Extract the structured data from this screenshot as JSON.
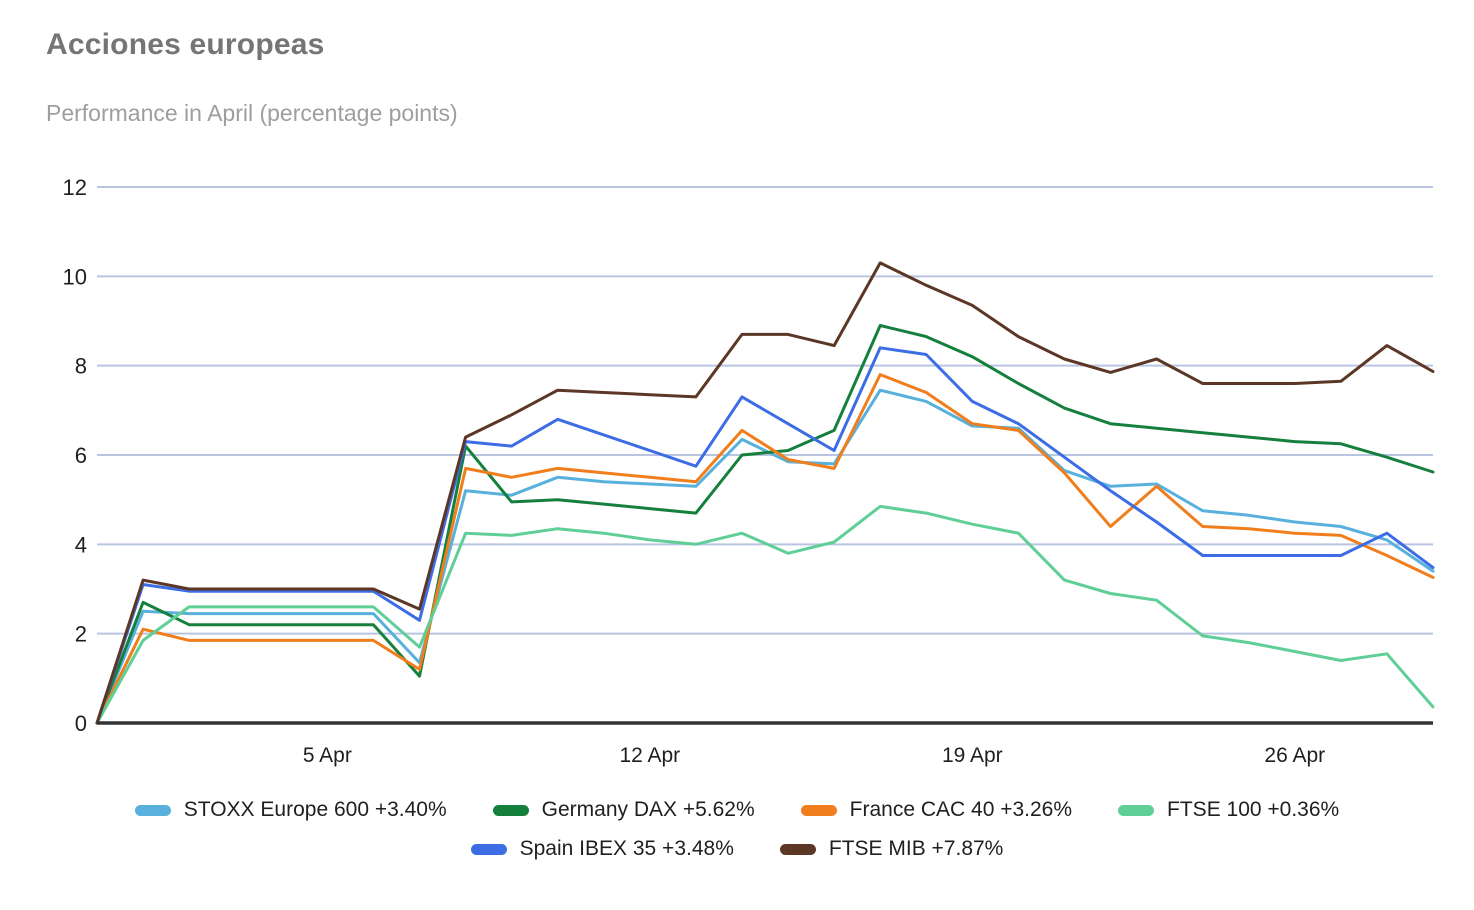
{
  "header": {
    "title": "Acciones europeas",
    "subtitle": "Performance in April (percentage points)"
  },
  "style": {
    "gridline_color": "#b9c5e0",
    "axis_color": "#333333",
    "tick_label_color": "#1f1f1f",
    "title_color": "#757575",
    "subtitle_color": "#9e9e9e",
    "background": "#ffffff"
  },
  "chart_data": {
    "type": "line",
    "title": "Acciones europeas",
    "subtitle": "Performance in April (percentage points)",
    "xlabel": "",
    "ylabel": "",
    "ylim": [
      0,
      12
    ],
    "y_ticks": [
      0,
      2,
      4,
      6,
      8,
      10,
      12
    ],
    "grid": "horizontal-only",
    "legend_position": "bottom",
    "x_description": "Daily points from 31 Mar to 29 Apr (30 points, index 0-29)",
    "x_tick_labels": [
      {
        "label": "5 Apr",
        "day": 5
      },
      {
        "label": "12 Apr",
        "day": 12
      },
      {
        "label": "19 Apr",
        "day": 19
      },
      {
        "label": "26 Apr",
        "day": 26
      }
    ],
    "series": [
      {
        "name": "STOXX Europe 600 +3.40%",
        "color": "#58b0dc",
        "values": [
          0,
          2.5,
          2.45,
          2.45,
          2.45,
          2.45,
          2.45,
          1.35,
          5.2,
          5.1,
          5.5,
          5.4,
          5.35,
          5.3,
          6.35,
          5.85,
          5.8,
          7.45,
          7.2,
          6.65,
          6.6,
          5.65,
          5.3,
          5.35,
          4.75,
          4.65,
          4.5,
          4.4,
          4.1,
          3.4
        ]
      },
      {
        "name": "Germany DAX +5.62%",
        "color": "#15803c",
        "values": [
          0,
          2.7,
          2.2,
          2.2,
          2.2,
          2.2,
          2.2,
          1.05,
          6.2,
          4.95,
          5.0,
          4.9,
          4.8,
          4.7,
          6.0,
          6.1,
          6.55,
          8.9,
          8.65,
          8.2,
          7.6,
          7.05,
          6.7,
          6.6,
          6.5,
          6.4,
          6.3,
          6.25,
          5.95,
          5.62
        ]
      },
      {
        "name": "France CAC 40 +3.26%",
        "color": "#f07e1c",
        "values": [
          0,
          2.1,
          1.85,
          1.85,
          1.85,
          1.85,
          1.85,
          1.2,
          5.7,
          5.5,
          5.7,
          5.6,
          5.5,
          5.4,
          6.55,
          5.9,
          5.7,
          7.8,
          7.4,
          6.7,
          6.55,
          5.6,
          4.4,
          5.3,
          4.4,
          4.35,
          4.25,
          4.2,
          3.75,
          3.26
        ]
      },
      {
        "name": "FTSE 100 +0.36%",
        "color": "#5fce97",
        "values": [
          0,
          1.85,
          2.6,
          2.6,
          2.6,
          2.6,
          2.6,
          1.7,
          4.25,
          4.2,
          4.35,
          4.25,
          4.1,
          4.0,
          4.25,
          3.8,
          4.05,
          4.85,
          4.7,
          4.45,
          4.25,
          3.2,
          2.9,
          2.75,
          1.95,
          1.8,
          1.6,
          1.4,
          1.55,
          0.36
        ]
      },
      {
        "name": "Spain IBEX 35 +3.48%",
        "color": "#3c6de5",
        "values": [
          0,
          3.1,
          2.95,
          2.95,
          2.95,
          2.95,
          2.95,
          2.3,
          6.3,
          6.2,
          6.8,
          6.45,
          6.1,
          5.75,
          7.3,
          6.7,
          6.1,
          8.4,
          8.25,
          7.2,
          6.7,
          5.95,
          5.2,
          4.5,
          3.75,
          3.75,
          3.75,
          3.75,
          4.25,
          3.48
        ]
      },
      {
        "name": "FTSE MIB +7.87%",
        "color": "#5c3726",
        "values": [
          0,
          3.2,
          3.0,
          3.0,
          3.0,
          3.0,
          3.0,
          2.55,
          6.4,
          6.9,
          7.45,
          7.4,
          7.35,
          7.3,
          8.7,
          8.7,
          8.45,
          10.3,
          9.8,
          9.35,
          8.65,
          8.15,
          7.85,
          8.15,
          7.6,
          7.6,
          7.6,
          7.65,
          8.45,
          7.87
        ]
      }
    ],
    "legend_rows": [
      [
        0,
        1,
        2,
        3
      ],
      [
        4,
        5
      ]
    ]
  }
}
